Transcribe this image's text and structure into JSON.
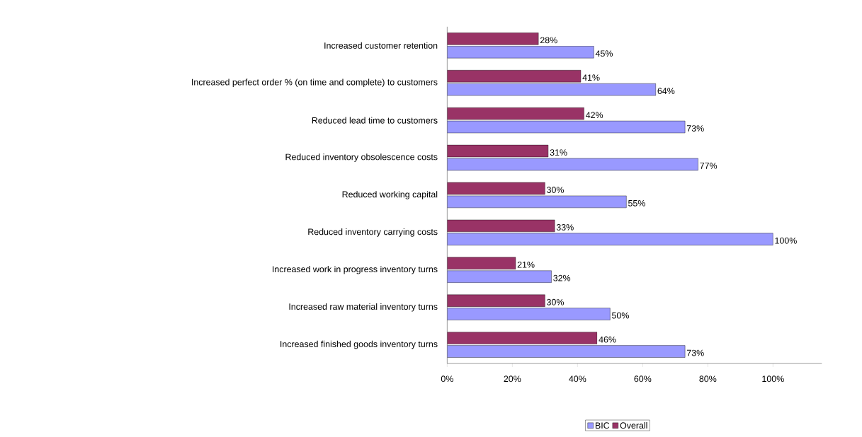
{
  "chart_data": {
    "type": "bar",
    "orientation": "horizontal",
    "categories": [
      "Increased customer retention",
      "Increased perfect order % (on time and complete) to customers",
      "Reduced lead time to customers",
      "Reduced inventory obsolescence costs",
      "Reduced working capital",
      "Reduced inventory carrying costs",
      "Increased work in progress inventory turns",
      "Increased raw material inventory turns",
      "Increased finished goods inventory turns"
    ],
    "series": [
      {
        "name": "BIC",
        "color": "#9999ff",
        "values": [
          45,
          64,
          73,
          77,
          55,
          100,
          32,
          50,
          73
        ],
        "value_labels": [
          "45%",
          "64%",
          "73%",
          "77%",
          "55%",
          "100%",
          "32%",
          "50%",
          "73%"
        ]
      },
      {
        "name": "Overall",
        "color": "#993366",
        "values": [
          28,
          41,
          42,
          31,
          30,
          33,
          21,
          30,
          46
        ],
        "value_labels": [
          "28%",
          "41%",
          "42%",
          "31%",
          "30%",
          "33%",
          "21%",
          "30%",
          "46%"
        ]
      }
    ],
    "xlim": [
      0,
      115
    ],
    "xticks": [
      {
        "value": 0,
        "label": "0%"
      },
      {
        "value": 20,
        "label": "20%"
      },
      {
        "value": 40,
        "label": "40%"
      },
      {
        "value": 60,
        "label": "60%"
      },
      {
        "value": 80,
        "label": "80%"
      },
      {
        "value": 100,
        "label": "100%"
      }
    ],
    "grid": false,
    "legend": "bottom"
  }
}
